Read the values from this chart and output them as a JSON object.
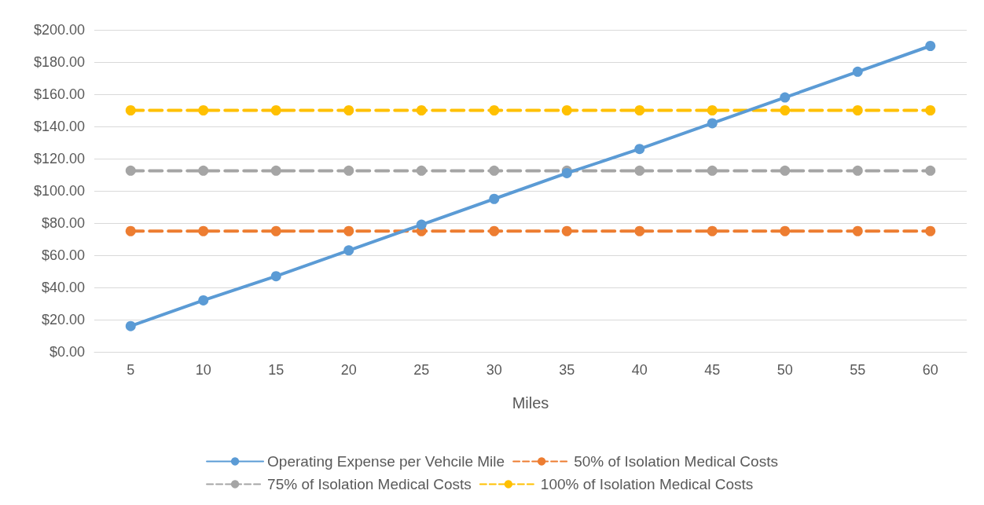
{
  "chart_data": {
    "type": "line",
    "xlabel": "Miles",
    "categories": [
      "5",
      "10",
      "15",
      "20",
      "25",
      "30",
      "35",
      "40",
      "45",
      "50",
      "55",
      "60"
    ],
    "ylim": [
      0,
      200
    ],
    "yticks": [
      {
        "value": 0,
        "label": "$0.00"
      },
      {
        "value": 20,
        "label": "$20.00"
      },
      {
        "value": 40,
        "label": "$40.00"
      },
      {
        "value": 60,
        "label": "$60.00"
      },
      {
        "value": 80,
        "label": "$80.00"
      },
      {
        "value": 100,
        "label": "$100.00"
      },
      {
        "value": 120,
        "label": "$120.00"
      },
      {
        "value": 140,
        "label": "$140.00"
      },
      {
        "value": 160,
        "label": "$160.00"
      },
      {
        "value": 180,
        "label": "$180.00"
      },
      {
        "value": 200,
        "label": "$200.00"
      }
    ],
    "grid": "y",
    "legend": "bottom",
    "marker": "circle",
    "series": [
      {
        "name": "Operating Expense per Vehcile Mile",
        "color": "#5b9bd5",
        "line_style": "solid",
        "values": [
          16,
          32,
          47,
          63,
          79,
          95,
          111,
          126,
          142,
          158,
          174,
          190
        ]
      },
      {
        "name": "50% of Isolation Medical Costs",
        "color": "#ed7d31",
        "line_style": "dashed",
        "values": [
          75,
          75,
          75,
          75,
          75,
          75,
          75,
          75,
          75,
          75,
          75,
          75
        ]
      },
      {
        "name": "75% of Isolation Medical Costs",
        "color": "#a5a5a5",
        "line_style": "dashed",
        "values": [
          112.5,
          112.5,
          112.5,
          112.5,
          112.5,
          112.5,
          112.5,
          112.5,
          112.5,
          112.5,
          112.5,
          112.5
        ]
      },
      {
        "name": "100% of Isolation Medical Costs",
        "color": "#ffc000",
        "line_style": "dashed",
        "values": [
          150,
          150,
          150,
          150,
          150,
          150,
          150,
          150,
          150,
          150,
          150,
          150
        ]
      }
    ]
  }
}
